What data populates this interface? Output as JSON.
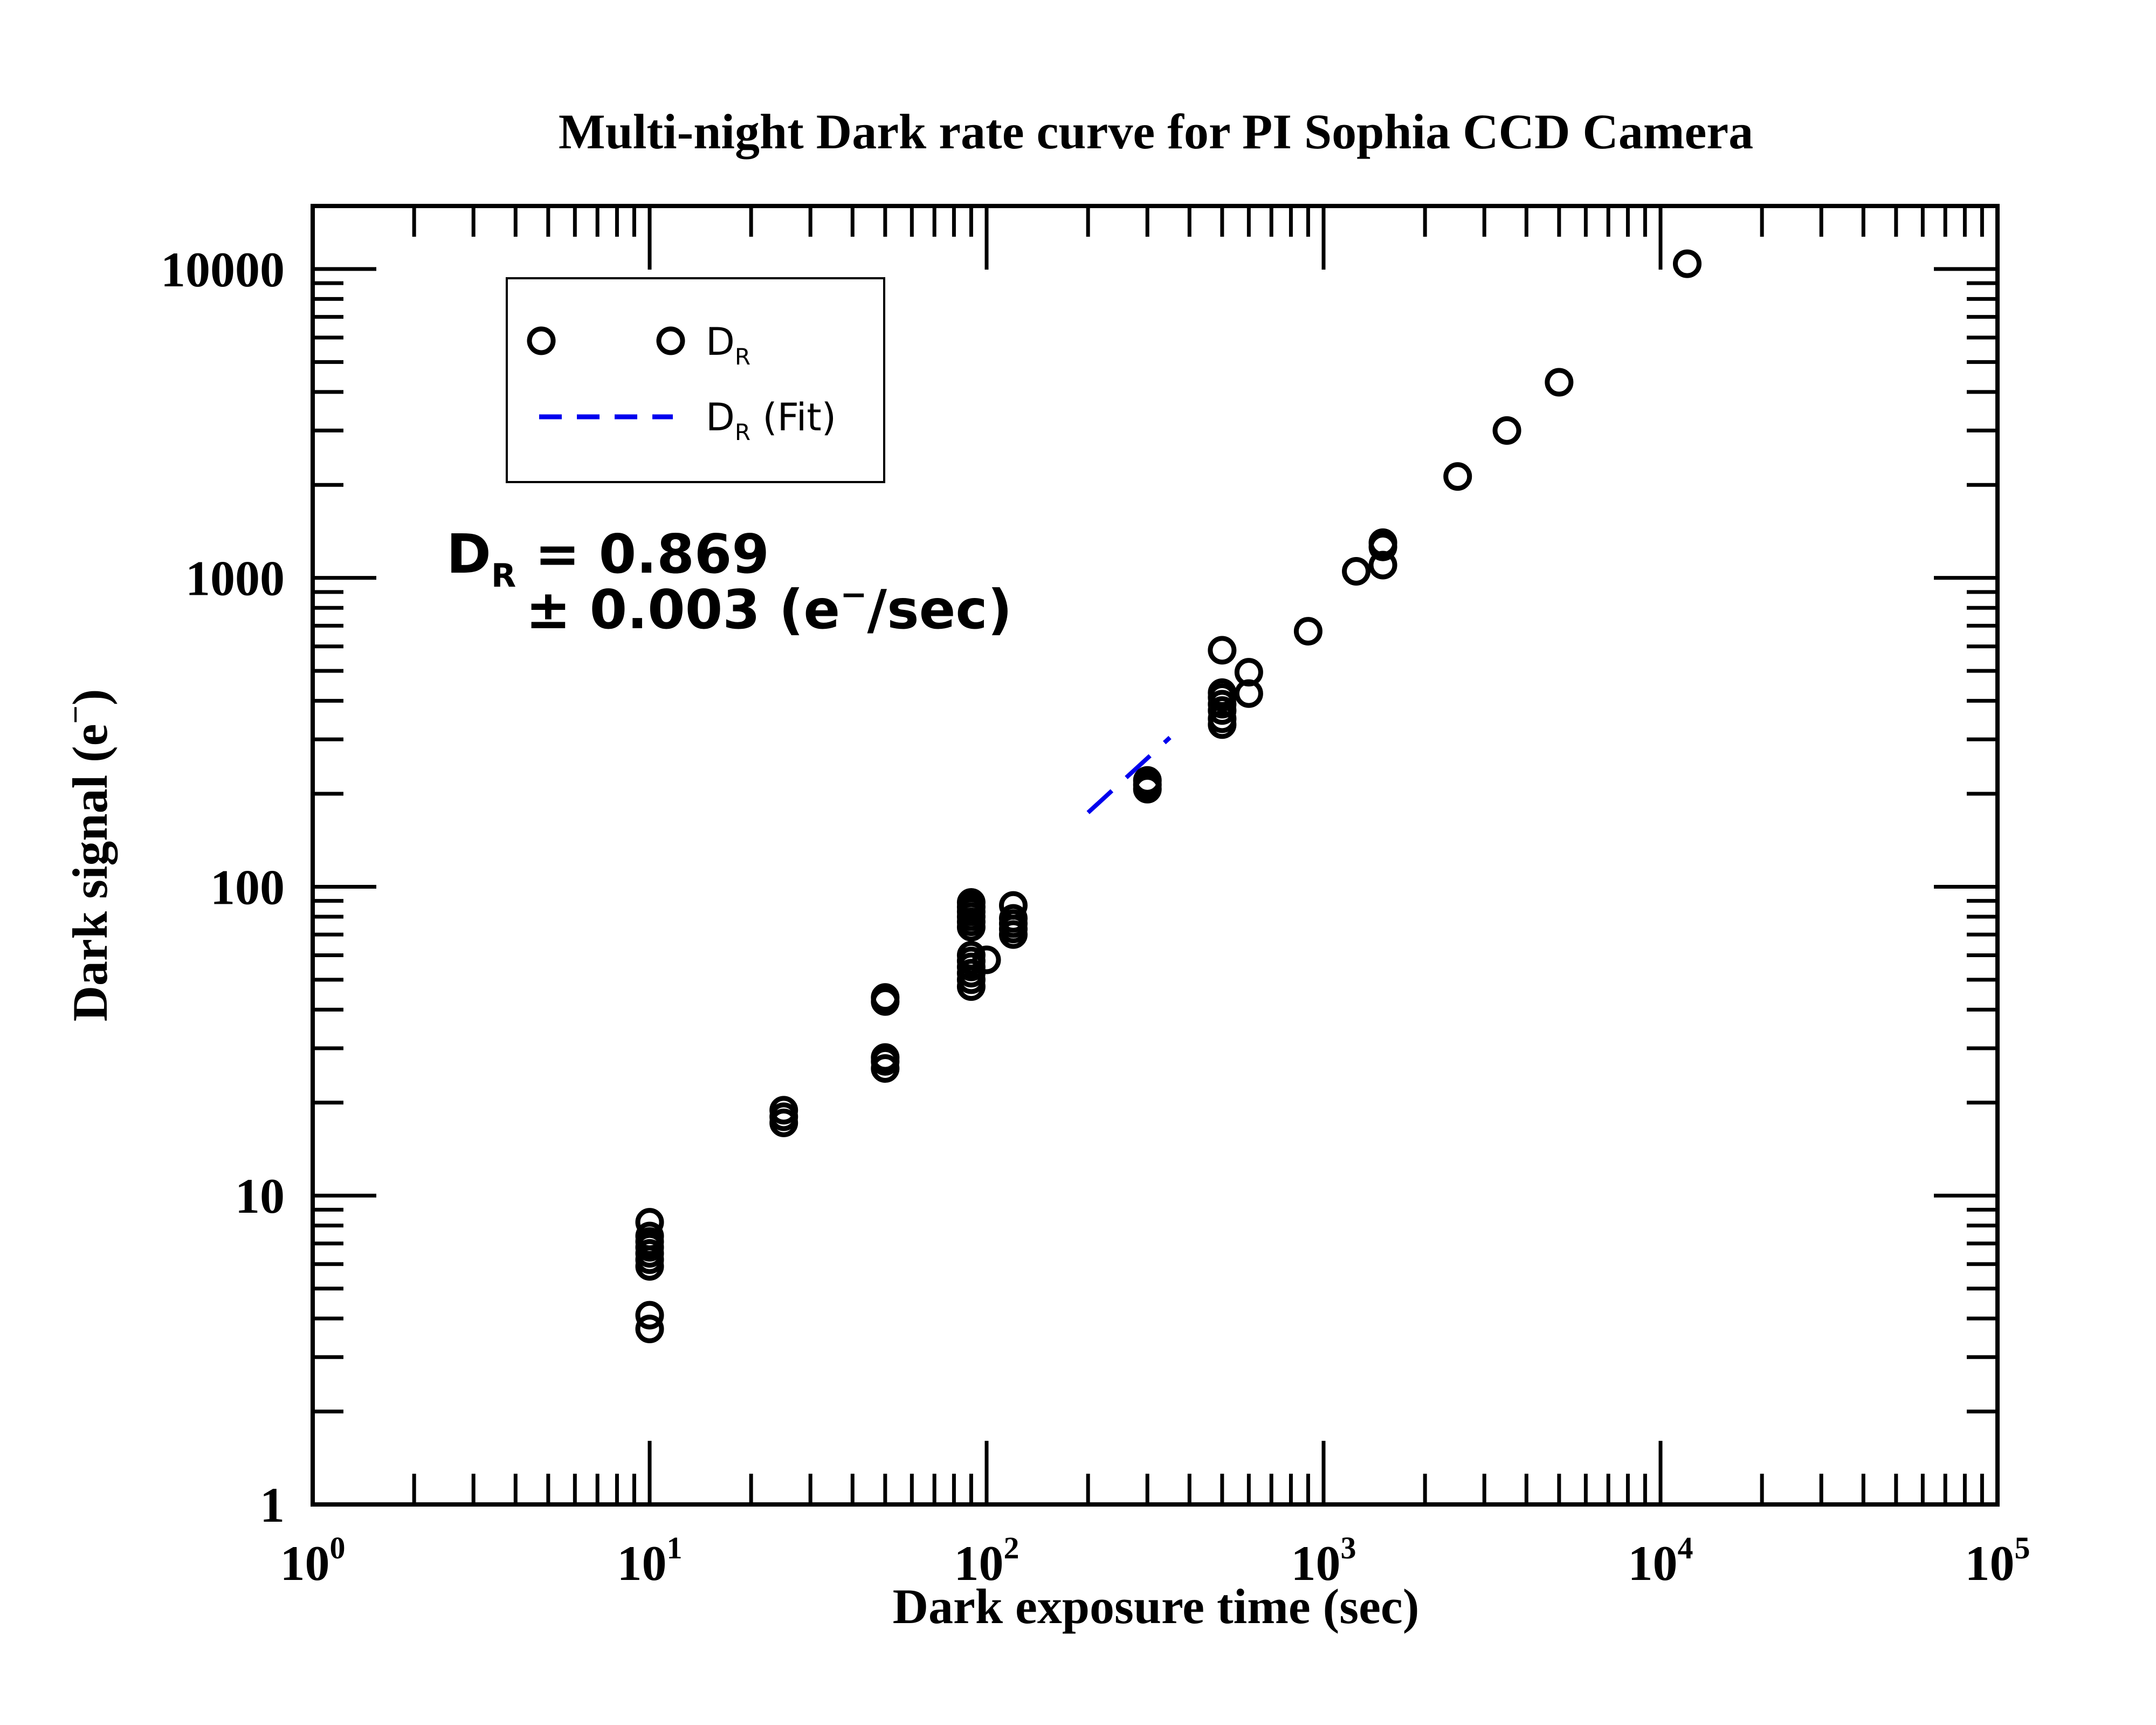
{
  "chart_data": {
    "type": "scatter",
    "title": "Multi-night Dark rate curve for PI Sophia CCD Camera",
    "xlabel": "Dark exposure time (sec)",
    "ylabel": "Dark signal (e",
    "ylabel_sup": "−",
    "ylabel_close": ")",
    "x_scale": "log",
    "y_scale": "log",
    "xlim": [
      1,
      100000
    ],
    "ylim": [
      1,
      16000
    ],
    "x_ticks": [
      {
        "value": 1,
        "base": "10",
        "exp": "0"
      },
      {
        "value": 10,
        "base": "10",
        "exp": "1"
      },
      {
        "value": 100,
        "base": "10",
        "exp": "2"
      },
      {
        "value": 1000,
        "base": "10",
        "exp": "3"
      },
      {
        "value": 10000,
        "base": "10",
        "exp": "4"
      },
      {
        "value": 100000,
        "base": "10",
        "exp": "5"
      }
    ],
    "y_ticks": [
      {
        "value": 1,
        "label": "1"
      },
      {
        "value": 10,
        "label": "10"
      },
      {
        "value": 100,
        "label": "100"
      },
      {
        "value": 1000,
        "label": "1000"
      },
      {
        "value": 10000,
        "label": "10000"
      }
    ],
    "grid": false,
    "legend_position": "top-left",
    "series": [
      {
        "name": "D",
        "name_sub": "R",
        "marker": "open-circle",
        "color": "#000000",
        "points": [
          {
            "x": 10,
            "y": 3.7
          },
          {
            "x": 10,
            "y": 4.1
          },
          {
            "x": 10,
            "y": 5.9
          },
          {
            "x": 10,
            "y": 6.2
          },
          {
            "x": 10,
            "y": 6.5
          },
          {
            "x": 10,
            "y": 6.8
          },
          {
            "x": 10,
            "y": 7.1
          },
          {
            "x": 10,
            "y": 7.4
          },
          {
            "x": 10,
            "y": 8.2
          },
          {
            "x": 25,
            "y": 17.2
          },
          {
            "x": 25,
            "y": 18.0
          },
          {
            "x": 25,
            "y": 18.9
          },
          {
            "x": 50,
            "y": 25.8
          },
          {
            "x": 50,
            "y": 27.2
          },
          {
            "x": 50,
            "y": 28.0
          },
          {
            "x": 50,
            "y": 42.5
          },
          {
            "x": 50,
            "y": 43.8
          },
          {
            "x": 90,
            "y": 47.5
          },
          {
            "x": 90,
            "y": 50.0
          },
          {
            "x": 90,
            "y": 52.5
          },
          {
            "x": 90,
            "y": 55.0
          },
          {
            "x": 90,
            "y": 57.5
          },
          {
            "x": 90,
            "y": 60.0
          },
          {
            "x": 100,
            "y": 58.0
          },
          {
            "x": 90,
            "y": 74.0
          },
          {
            "x": 90,
            "y": 77.0
          },
          {
            "x": 90,
            "y": 80.0
          },
          {
            "x": 90,
            "y": 83.0
          },
          {
            "x": 90,
            "y": 86.0
          },
          {
            "x": 90,
            "y": 89.0
          },
          {
            "x": 120,
            "y": 70.0
          },
          {
            "x": 120,
            "y": 73.0
          },
          {
            "x": 120,
            "y": 76.0
          },
          {
            "x": 120,
            "y": 79.0
          },
          {
            "x": 120,
            "y": 87.0
          },
          {
            "x": 300,
            "y": 207
          },
          {
            "x": 300,
            "y": 214
          },
          {
            "x": 300,
            "y": 221
          },
          {
            "x": 500,
            "y": 335
          },
          {
            "x": 500,
            "y": 350
          },
          {
            "x": 500,
            "y": 372
          },
          {
            "x": 500,
            "y": 390
          },
          {
            "x": 500,
            "y": 410
          },
          {
            "x": 500,
            "y": 425
          },
          {
            "x": 500,
            "y": 583
          },
          {
            "x": 600,
            "y": 422
          },
          {
            "x": 600,
            "y": 495
          },
          {
            "x": 900,
            "y": 672
          },
          {
            "x": 1250,
            "y": 1050
          },
          {
            "x": 1500,
            "y": 1100
          },
          {
            "x": 1500,
            "y": 1260
          },
          {
            "x": 1500,
            "y": 1300
          },
          {
            "x": 2500,
            "y": 2130
          },
          {
            "x": 3500,
            "y": 3000
          },
          {
            "x": 5000,
            "y": 4300
          },
          {
            "x": 12000,
            "y": 10400
          }
        ]
      },
      {
        "name": "D",
        "name_sub": "R",
        "name_suffix": " (Fit)",
        "line": "dashed",
        "color": "#0000ee",
        "slope": 0.869,
        "x_range": [
          200,
          350
        ]
      }
    ],
    "annotation": {
      "line1_main": "D",
      "line1_sub": "R",
      "line1_rest": " = 0.869",
      "line2_pre": "± 0.003 (e",
      "line2_sup": "−",
      "line2_post": "/sec)"
    }
  }
}
